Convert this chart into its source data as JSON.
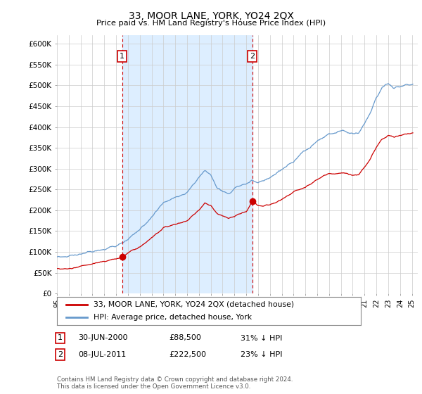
{
  "title": "33, MOOR LANE, YORK, YO24 2QX",
  "subtitle": "Price paid vs. HM Land Registry's House Price Index (HPI)",
  "xlim_left": 1995.0,
  "xlim_right": 2025.5,
  "ylim_bottom": 0,
  "ylim_top": 620000,
  "yticks": [
    0,
    50000,
    100000,
    150000,
    200000,
    250000,
    300000,
    350000,
    400000,
    450000,
    500000,
    550000,
    600000
  ],
  "ytick_labels": [
    "£0",
    "£50K",
    "£100K",
    "£150K",
    "£200K",
    "£250K",
    "£300K",
    "£350K",
    "£400K",
    "£450K",
    "£500K",
    "£550K",
    "£600K"
  ],
  "xticks": [
    1995,
    1996,
    1997,
    1998,
    1999,
    2000,
    2001,
    2002,
    2003,
    2004,
    2005,
    2006,
    2007,
    2008,
    2009,
    2010,
    2011,
    2012,
    2013,
    2014,
    2015,
    2016,
    2017,
    2018,
    2019,
    2020,
    2021,
    2022,
    2023,
    2024,
    2025
  ],
  "background_color": "#ffffff",
  "grid_color": "#cccccc",
  "sale_color": "#cc0000",
  "hpi_color": "#6699cc",
  "hpi_fill_color": "#ddeeff",
  "vline_color": "#cc0000",
  "marker1_x": 2000.5,
  "marker1_y": 88500,
  "marker2_x": 2011.5,
  "marker2_y": 222500,
  "sale_label": "33, MOOR LANE, YORK, YO24 2QX (detached house)",
  "hpi_label": "HPI: Average price, detached house, York",
  "transaction1_date": "30-JUN-2000",
  "transaction1_price": "£88,500",
  "transaction1_hpi": "31% ↓ HPI",
  "transaction2_date": "08-JUL-2011",
  "transaction2_price": "£222,500",
  "transaction2_hpi": "23% ↓ HPI",
  "footer": "Contains HM Land Registry data © Crown copyright and database right 2024.\nThis data is licensed under the Open Government Licence v3.0."
}
